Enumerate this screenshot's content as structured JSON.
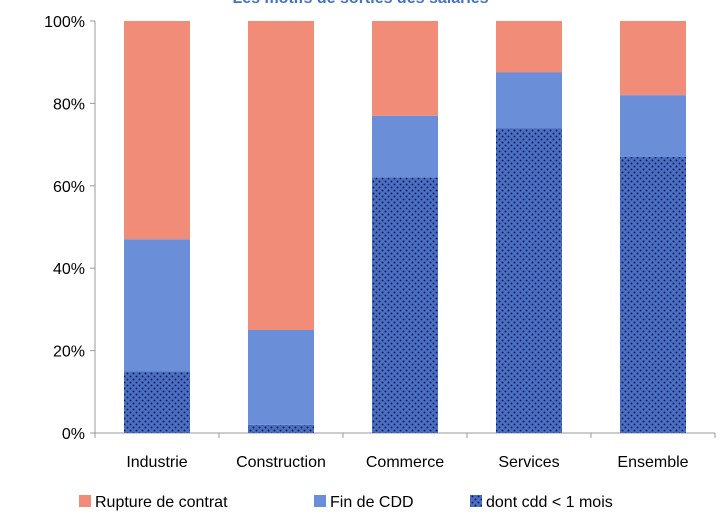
{
  "chart_data": {
    "type": "bar",
    "stacked": true,
    "title": "Les motifs de sorties des salariés",
    "categories": [
      "Industrie",
      "Construction",
      "Commerce",
      "Services",
      "Ensemble"
    ],
    "series": [
      {
        "name": "dont cdd < 1 mois",
        "values": [
          15,
          2,
          62,
          74,
          67
        ],
        "color": "#4a6fc4",
        "pattern": "dots"
      },
      {
        "name": "Fin de CDD",
        "values": [
          32,
          23,
          15,
          13.5,
          15
        ],
        "color": "#6a8fd8"
      },
      {
        "name": "Rupture de contrat",
        "values": [
          53,
          75,
          23,
          12.5,
          18
        ],
        "color": "#f08c78"
      }
    ],
    "legend_order": [
      "Rupture de contrat",
      "Fin de CDD",
      "dont cdd < 1 mois"
    ],
    "ylim": [
      0,
      100
    ],
    "yticks": [
      "0%",
      "20%",
      "40%",
      "60%",
      "80%",
      "100%"
    ],
    "ytick_values": [
      0,
      20,
      40,
      60,
      80,
      100
    ],
    "grid": false,
    "legend_position": "bottom"
  }
}
